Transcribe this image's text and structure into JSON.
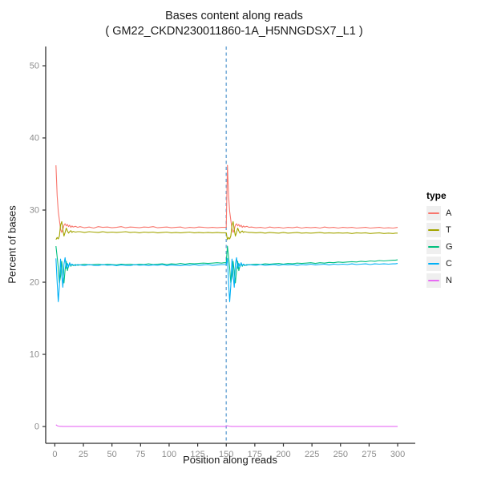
{
  "page": {
    "background": "#ffffff"
  },
  "chart_data": {
    "type": "line",
    "title": "Bases content along reads",
    "subtitle": "( GM22_CKDN230011860-1A_H5NNGDSX7_L1 )",
    "xlabel": "Position along reads",
    "ylabel": "Percent of bases",
    "legend_title": "type",
    "legend_position": "right",
    "grid": "off",
    "xlim": [
      -8,
      315.4
    ],
    "ylim": [
      -2.33,
      52.67
    ],
    "x_ticks": [
      0,
      25,
      50,
      75,
      100,
      125,
      150,
      175,
      200,
      225,
      250,
      275,
      300
    ],
    "y_ticks": [
      0,
      10,
      20,
      30,
      40,
      50
    ],
    "vline": {
      "x": 150,
      "style": "dashed",
      "color": "#4F94CD"
    },
    "axis_color": "#2f2f2f",
    "tick_label_color": "#8c8c8c",
    "x": [
      1,
      2,
      3,
      4,
      5,
      6,
      7,
      8,
      9,
      10,
      11,
      12,
      13,
      14,
      15,
      16,
      18,
      20,
      22,
      26,
      30,
      34,
      38,
      42,
      46,
      50,
      54,
      58,
      62,
      66,
      70,
      74,
      78,
      82,
      86,
      90,
      94,
      98,
      102,
      106,
      110,
      114,
      118,
      122,
      126,
      130,
      134,
      138,
      142,
      146,
      148,
      149,
      150,
      151,
      152,
      153,
      154,
      155,
      156,
      157,
      158,
      159,
      160,
      161,
      162,
      163,
      164,
      165,
      166,
      168,
      170,
      172,
      176,
      180,
      184,
      188,
      192,
      196,
      200,
      204,
      208,
      212,
      216,
      220,
      224,
      228,
      232,
      236,
      240,
      244,
      248,
      252,
      256,
      260,
      264,
      268,
      272,
      276,
      280,
      284,
      288,
      292,
      296,
      298,
      300
    ],
    "series": [
      {
        "name": "A",
        "color": "#F8766D",
        "values": [
          36.2,
          32.0,
          29.8,
          28.6,
          27.4,
          26.9,
          27.3,
          27.9,
          28.1,
          27.8,
          28.0,
          27.7,
          27.9,
          27.6,
          27.8,
          27.65,
          27.75,
          27.6,
          27.7,
          27.55,
          27.65,
          27.5,
          27.7,
          27.6,
          27.65,
          27.55,
          27.6,
          27.7,
          27.55,
          27.65,
          27.6,
          27.55,
          27.65,
          27.6,
          27.7,
          27.55,
          27.6,
          27.65,
          27.55,
          27.6,
          27.65,
          27.5,
          27.6,
          27.55,
          27.65,
          27.6,
          27.55,
          27.6,
          27.55,
          27.6,
          27.6,
          27.6,
          27.6,
          36.2,
          32.0,
          29.8,
          28.6,
          27.4,
          26.9,
          27.3,
          27.9,
          28.1,
          27.8,
          28.0,
          27.7,
          27.9,
          27.6,
          27.8,
          27.65,
          27.75,
          27.6,
          27.65,
          27.55,
          27.6,
          27.5,
          27.65,
          27.55,
          27.6,
          27.5,
          27.6,
          27.55,
          27.65,
          27.5,
          27.6,
          27.55,
          27.6,
          27.5,
          27.65,
          27.55,
          27.6,
          27.5,
          27.6,
          27.55,
          27.6,
          27.5,
          27.55,
          27.6,
          27.5,
          27.55,
          27.6,
          27.5,
          27.55,
          27.5,
          27.55,
          27.6
        ]
      },
      {
        "name": "T",
        "color": "#A3A500",
        "values": [
          25.9,
          26.2,
          26.0,
          26.4,
          27.9,
          28.4,
          27.3,
          26.4,
          26.9,
          27.5,
          27.1,
          26.8,
          27.0,
          27.15,
          26.9,
          27.05,
          26.95,
          27.0,
          27.0,
          26.9,
          27.0,
          26.95,
          26.9,
          27.0,
          26.9,
          26.95,
          26.9,
          26.95,
          27.0,
          26.9,
          26.95,
          26.85,
          26.95,
          26.9,
          26.95,
          26.85,
          26.9,
          26.95,
          26.85,
          26.9,
          26.85,
          26.9,
          26.95,
          26.85,
          26.9,
          26.85,
          26.9,
          26.85,
          26.9,
          26.85,
          26.85,
          26.85,
          26.85,
          25.9,
          26.2,
          26.0,
          26.4,
          27.9,
          28.4,
          27.3,
          26.4,
          26.9,
          27.5,
          27.1,
          26.8,
          27.0,
          27.1,
          26.9,
          27.0,
          26.95,
          26.9,
          26.9,
          26.85,
          26.9,
          26.8,
          26.9,
          26.85,
          26.8,
          26.9,
          26.8,
          26.85,
          26.9,
          26.8,
          26.85,
          26.8,
          26.85,
          26.9,
          26.8,
          26.85,
          26.8,
          26.85,
          26.8,
          26.85,
          26.75,
          26.85,
          26.8,
          26.85,
          26.75,
          26.8,
          26.85,
          26.75,
          26.8,
          26.75,
          26.8,
          26.8
        ]
      },
      {
        "name": "G",
        "color": "#00BF7D",
        "values": [
          25.0,
          23.5,
          22.0,
          19.9,
          20.8,
          22.9,
          21.4,
          19.9,
          21.7,
          22.9,
          21.6,
          22.3,
          22.6,
          22.2,
          22.5,
          22.3,
          22.45,
          22.35,
          22.4,
          22.5,
          22.4,
          22.45,
          22.5,
          22.4,
          22.5,
          22.45,
          22.4,
          22.5,
          22.45,
          22.5,
          22.4,
          22.5,
          22.45,
          22.55,
          22.45,
          22.5,
          22.55,
          22.45,
          22.55,
          22.5,
          22.6,
          22.5,
          22.6,
          22.55,
          22.6,
          22.65,
          22.6,
          22.65,
          22.7,
          22.65,
          22.7,
          22.7,
          22.7,
          25.0,
          23.5,
          22.0,
          19.9,
          20.8,
          22.9,
          21.4,
          19.9,
          21.7,
          22.9,
          21.6,
          22.3,
          22.6,
          22.2,
          22.5,
          22.3,
          22.45,
          22.4,
          22.45,
          22.5,
          22.45,
          22.55,
          22.5,
          22.55,
          22.6,
          22.5,
          22.6,
          22.55,
          22.65,
          22.6,
          22.65,
          22.7,
          22.6,
          22.7,
          22.65,
          22.75,
          22.7,
          22.8,
          22.75,
          22.8,
          22.85,
          22.8,
          22.9,
          22.85,
          22.95,
          22.9,
          23.0,
          22.95,
          23.0,
          23.05,
          23.05,
          23.1
        ]
      },
      {
        "name": "C",
        "color": "#00B0F6",
        "values": [
          23.3,
          20.0,
          17.3,
          19.5,
          23.2,
          21.0,
          19.3,
          22.5,
          23.4,
          21.9,
          22.6,
          22.1,
          22.7,
          22.3,
          22.5,
          22.4,
          22.3,
          22.45,
          22.4,
          22.3,
          22.45,
          22.35,
          22.3,
          22.45,
          22.35,
          22.4,
          22.3,
          22.4,
          22.35,
          22.3,
          22.45,
          22.35,
          22.4,
          22.3,
          22.4,
          22.35,
          22.45,
          22.3,
          22.4,
          22.35,
          22.3,
          22.4,
          22.35,
          22.45,
          22.35,
          22.4,
          22.45,
          22.35,
          22.4,
          22.45,
          22.45,
          22.45,
          22.45,
          23.3,
          20.0,
          17.3,
          19.5,
          23.2,
          21.0,
          19.3,
          22.5,
          23.4,
          21.9,
          22.6,
          22.1,
          22.7,
          22.3,
          22.5,
          22.4,
          22.35,
          22.45,
          22.4,
          22.35,
          22.45,
          22.35,
          22.4,
          22.45,
          22.35,
          22.45,
          22.4,
          22.45,
          22.35,
          22.45,
          22.4,
          22.5,
          22.4,
          22.45,
          22.5,
          22.4,
          22.5,
          22.45,
          22.5,
          22.45,
          22.55,
          22.45,
          22.5,
          22.55,
          22.45,
          22.55,
          22.5,
          22.55,
          22.5,
          22.55,
          22.55,
          22.6
        ]
      },
      {
        "name": "N",
        "color": "#E76BF3",
        "values": [
          0.25,
          0.12,
          0.06,
          0.04,
          0.03,
          0.03,
          0.02,
          0.02,
          0.02,
          0.02,
          0.02,
          0.02,
          0.02,
          0.02,
          0.02,
          0.02,
          0.02,
          0.02,
          0.02,
          0.02,
          0.02,
          0.02,
          0.02,
          0.02,
          0.02,
          0.02,
          0.02,
          0.02,
          0.02,
          0.02,
          0.02,
          0.02,
          0.02,
          0.02,
          0.02,
          0.02,
          0.02,
          0.02,
          0.02,
          0.02,
          0.02,
          0.02,
          0.02,
          0.02,
          0.02,
          0.02,
          0.02,
          0.02,
          0.02,
          0.02,
          0.02,
          0.02,
          0.02,
          0.12,
          0.06,
          0.04,
          0.03,
          0.02,
          0.02,
          0.02,
          0.02,
          0.02,
          0.02,
          0.02,
          0.02,
          0.02,
          0.02,
          0.02,
          0.02,
          0.02,
          0.02,
          0.02,
          0.02,
          0.02,
          0.02,
          0.02,
          0.02,
          0.02,
          0.02,
          0.02,
          0.02,
          0.02,
          0.02,
          0.02,
          0.02,
          0.02,
          0.02,
          0.02,
          0.02,
          0.02,
          0.02,
          0.02,
          0.02,
          0.02,
          0.02,
          0.02,
          0.02,
          0.02,
          0.02,
          0.02,
          0.02,
          0.02,
          0.02,
          0.02,
          0.02
        ]
      }
    ]
  }
}
